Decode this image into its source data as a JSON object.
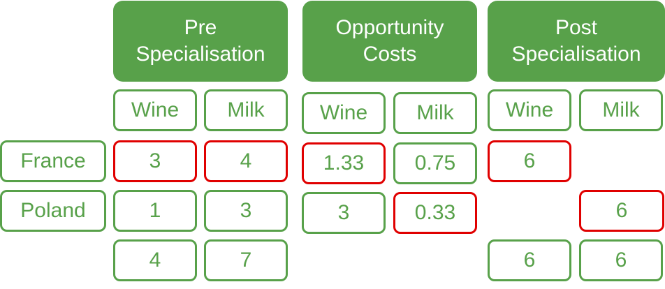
{
  "headers": {
    "pre": [
      "Pre",
      "Specialisation"
    ],
    "opportunity": [
      "Opportunity",
      "Costs"
    ],
    "post": [
      "Post",
      "Specialisation"
    ]
  },
  "columns": {
    "pre_wine": "Wine",
    "pre_milk": "Milk",
    "opp_wine": "Wine",
    "opp_milk": "Milk",
    "post_wine": "Wine",
    "post_milk": "Milk"
  },
  "rows": {
    "france": "France",
    "poland": "Poland"
  },
  "pre": {
    "france_wine": "3",
    "france_milk": "4",
    "poland_wine": "1",
    "poland_milk": "3",
    "total_wine": "4",
    "total_milk": "7"
  },
  "opportunity": {
    "france_wine": "1.33",
    "france_milk": "0.75",
    "poland_wine": "3",
    "poland_milk": "0.33"
  },
  "post": {
    "france_wine": "6",
    "poland_milk": "6",
    "total_wine": "6",
    "total_milk": "6"
  },
  "colors": {
    "green": "#58a14a",
    "highlight_red": "#e00000",
    "text_on_header": "#ffffff"
  }
}
